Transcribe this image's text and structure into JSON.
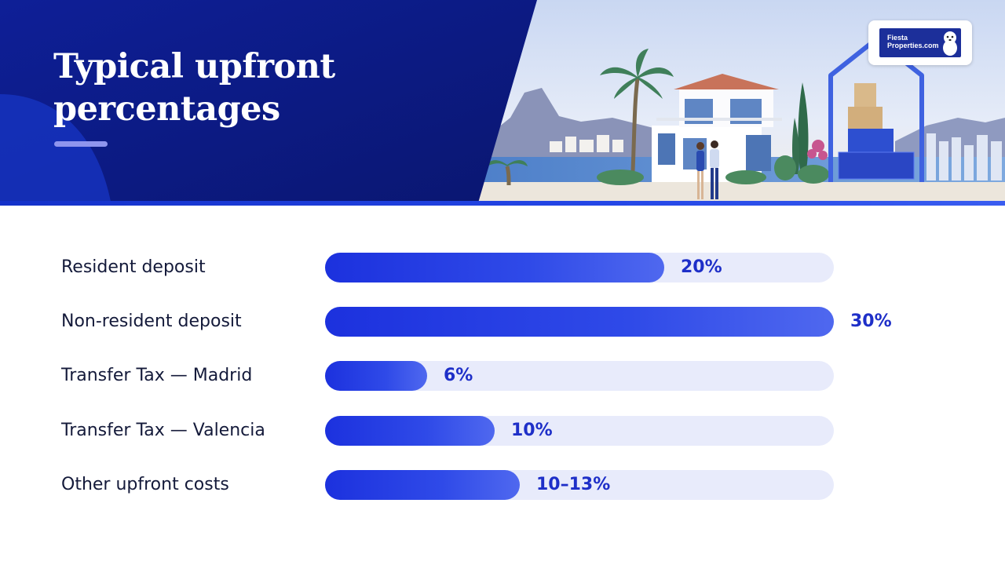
{
  "slide": {
    "title_lines": [
      "Typical upfront",
      "percentages"
    ]
  },
  "logo": {
    "name_lines": [
      "Fiesta",
      "Properties.com"
    ],
    "brand_color": "#1c2f9a"
  },
  "colors": {
    "header_navy": "#0b1a8c",
    "bar_fill": "#2a42e3",
    "bar_track": "#e8ebfb",
    "value_text": "#1e2fc8",
    "label_text": "#141a3a"
  },
  "chart_data": {
    "type": "bar",
    "orientation": "horizontal",
    "title": "Typical upfront percentages",
    "categories": [
      "Resident deposit",
      "Non-resident deposit",
      "Transfer Tax — Madrid",
      "Transfer Tax — Valencia",
      "Other upfront costs"
    ],
    "values": [
      20,
      30,
      6,
      10,
      11.5
    ],
    "value_labels": [
      "20%",
      "30%",
      "6%",
      "10%",
      "10–13%"
    ],
    "xlim": [
      0,
      30
    ],
    "grid": false,
    "legend": "none"
  }
}
